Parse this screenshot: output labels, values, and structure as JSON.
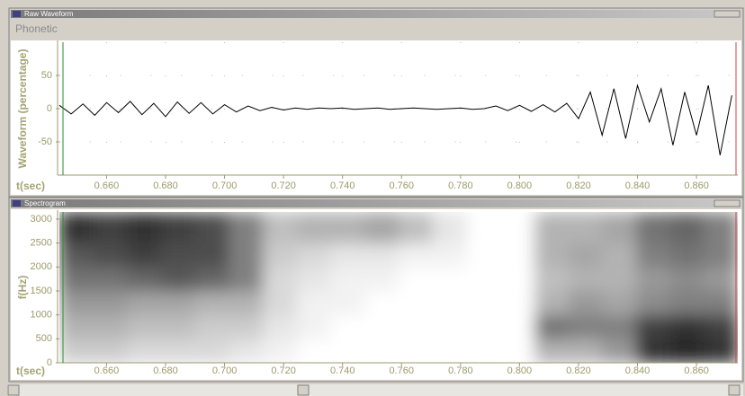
{
  "ui": {
    "tab": "Phonetic"
  },
  "chart_data": [
    {
      "type": "line",
      "title": "Raw Waveform",
      "ylabel": "Waveform (percentage)",
      "xlabel": "t(sec)",
      "x": [
        0.644,
        0.648,
        0.652,
        0.656,
        0.66,
        0.664,
        0.668,
        0.672,
        0.676,
        0.68,
        0.684,
        0.688,
        0.692,
        0.696,
        0.7,
        0.704,
        0.708,
        0.712,
        0.716,
        0.72,
        0.724,
        0.728,
        0.732,
        0.736,
        0.74,
        0.744,
        0.748,
        0.752,
        0.756,
        0.76,
        0.764,
        0.768,
        0.772,
        0.776,
        0.78,
        0.784,
        0.788,
        0.792,
        0.796,
        0.8,
        0.804,
        0.808,
        0.812,
        0.816,
        0.82,
        0.824,
        0.828,
        0.832,
        0.836,
        0.84,
        0.844,
        0.848,
        0.852,
        0.856,
        0.86,
        0.864,
        0.868,
        0.872
      ],
      "values": [
        5,
        -8,
        7,
        -10,
        9,
        -6,
        11,
        -9,
        8,
        -12,
        10,
        -7,
        9,
        -8,
        6,
        -5,
        4,
        -3,
        2,
        -2,
        1,
        -1,
        1,
        0,
        1,
        -1,
        0,
        1,
        -1,
        0,
        1,
        0,
        -1,
        0,
        1,
        -1,
        0,
        4,
        -3,
        5,
        -4,
        6,
        -5,
        8,
        -15,
        25,
        -40,
        30,
        -45,
        35,
        -20,
        30,
        -55,
        25,
        -40,
        35,
        -70,
        20
      ],
      "color": "#000000",
      "xlim": [
        0.644,
        0.874
      ],
      "ylim": [
        -100,
        100
      ],
      "xticks": [
        {
          "value": 0.66,
          "label": "0.660"
        },
        {
          "value": 0.68,
          "label": "0.680"
        },
        {
          "value": 0.7,
          "label": "0.700"
        },
        {
          "value": 0.72,
          "label": "0.720"
        },
        {
          "value": 0.74,
          "label": "0.740"
        },
        {
          "value": 0.76,
          "label": "0.760"
        },
        {
          "value": 0.78,
          "label": "0.780"
        },
        {
          "value": 0.8,
          "label": "0.800"
        },
        {
          "value": 0.82,
          "label": "0.820"
        },
        {
          "value": 0.84,
          "label": "0.840"
        },
        {
          "value": 0.86,
          "label": "0.860"
        }
      ],
      "yticks": [
        -50,
        0,
        50
      ],
      "grid": true
    },
    {
      "type": "heatmap",
      "title": "Spectrogram",
      "ylabel": "f(Hz)",
      "xlabel": "t(sec)",
      "x_bins": [
        0.644,
        0.6555,
        0.667,
        0.6785,
        0.69,
        0.7015,
        0.713,
        0.7245,
        0.736,
        0.7475,
        0.759,
        0.7705,
        0.782,
        0.7935,
        0.805,
        0.8165,
        0.828,
        0.8395,
        0.851,
        0.8625,
        0.874
      ],
      "y_bins": [
        0,
        500,
        1000,
        1500,
        2000,
        2500,
        3150
      ],
      "z": [
        [
          0.2,
          0.2,
          0.15,
          0.15,
          0.15,
          0.1,
          0.05,
          0,
          0,
          0,
          0,
          0,
          0,
          0,
          0.3,
          0.3,
          0.4,
          0.8,
          0.85,
          0.8
        ],
        [
          0.3,
          0.3,
          0.25,
          0.25,
          0.2,
          0.2,
          0.1,
          0.05,
          0,
          0,
          0,
          0,
          0,
          0,
          0.55,
          0.5,
          0.5,
          0.75,
          0.8,
          0.75
        ],
        [
          0.4,
          0.4,
          0.35,
          0.35,
          0.3,
          0.3,
          0.15,
          0.05,
          0.05,
          0,
          0,
          0,
          0,
          0,
          0.3,
          0.4,
          0.35,
          0.45,
          0.5,
          0.5
        ],
        [
          0.55,
          0.55,
          0.6,
          0.65,
          0.6,
          0.5,
          0.15,
          0.1,
          0.05,
          0.05,
          0,
          0,
          0,
          0,
          0.25,
          0.3,
          0.3,
          0.4,
          0.45,
          0.4
        ],
        [
          0.65,
          0.7,
          0.75,
          0.7,
          0.7,
          0.5,
          0.2,
          0.15,
          0.1,
          0.1,
          0.05,
          0.05,
          0,
          0,
          0.3,
          0.35,
          0.3,
          0.5,
          0.55,
          0.5
        ],
        [
          0.8,
          0.75,
          0.8,
          0.75,
          0.7,
          0.5,
          0.25,
          0.3,
          0.3,
          0.35,
          0.25,
          0.1,
          0,
          0,
          0.3,
          0.3,
          0.35,
          0.55,
          0.6,
          0.5
        ]
      ],
      "xlim": [
        0.644,
        0.874
      ],
      "ylim": [
        0,
        3150
      ],
      "xticks": [
        {
          "value": 0.66,
          "label": "0.660"
        },
        {
          "value": 0.68,
          "label": "0.680"
        },
        {
          "value": 0.7,
          "label": "0.700"
        },
        {
          "value": 0.72,
          "label": "0.720"
        },
        {
          "value": 0.74,
          "label": "0.740"
        },
        {
          "value": 0.76,
          "label": "0.760"
        },
        {
          "value": 0.78,
          "label": "0.780"
        },
        {
          "value": 0.8,
          "label": "0.800"
        },
        {
          "value": 0.82,
          "label": "0.820"
        },
        {
          "value": 0.84,
          "label": "0.840"
        },
        {
          "value": 0.86,
          "label": "0.860"
        }
      ],
      "yticks": [
        0,
        500,
        1000,
        1500,
        2000,
        2500,
        3000
      ],
      "grid": false
    }
  ]
}
